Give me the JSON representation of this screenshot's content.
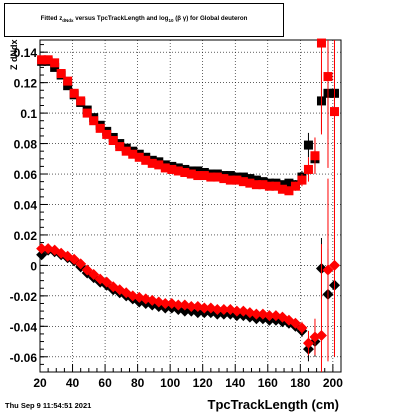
{
  "title": {
    "prefix": "Fitted",
    "z": "z",
    "z_sub": "dNdx",
    "middle": "versus TpcTrackLength and log",
    "log_sub": "10",
    "suffix": "(β γ) for Global deuteron"
  },
  "timestamp": "Thu Sep  9 11:54:51 2021",
  "chart_data": {
    "type": "scatter",
    "xlabel": "TpcTrackLength (cm)",
    "ylabel": "Z dNdx",
    "xlim": [
      20,
      205
    ],
    "ylim": [
      -0.07,
      0.148
    ],
    "xticks": [
      20,
      40,
      60,
      80,
      100,
      120,
      140,
      160,
      180,
      200
    ],
    "yticks": [
      -0.06,
      -0.04,
      -0.02,
      0,
      0.02,
      0.04,
      0.06,
      0.08,
      0.1,
      0.12,
      0.14
    ],
    "ytick_labels": [
      "-0.06",
      "-0.04",
      "-0.02",
      "0",
      "0.02",
      "0.04",
      "0.06",
      "0.08",
      "0.1",
      "0.12",
      "0.14"
    ],
    "grid": true,
    "series": [
      {
        "marker": "square",
        "color": "#000000",
        "x": [
          21,
          25,
          29,
          33,
          37,
          41,
          45,
          49,
          53,
          57,
          61,
          65,
          69,
          73,
          77,
          81,
          85,
          89,
          93,
          97,
          101,
          105,
          109,
          113,
          117,
          121,
          125,
          129,
          133,
          137,
          141,
          145,
          149,
          153,
          157,
          161,
          165,
          169,
          173,
          177,
          181,
          185,
          189,
          193,
          197,
          201
        ],
        "y": [
          0.134,
          0.134,
          0.13,
          0.125,
          0.118,
          0.112,
          0.107,
          0.102,
          0.097,
          0.092,
          0.088,
          0.084,
          0.08,
          0.077,
          0.075,
          0.073,
          0.071,
          0.069,
          0.068,
          0.066,
          0.065,
          0.064,
          0.063,
          0.062,
          0.062,
          0.061,
          0.06,
          0.06,
          0.059,
          0.059,
          0.058,
          0.058,
          0.057,
          0.056,
          0.055,
          0.054,
          0.054,
          0.053,
          0.054,
          0.053,
          0.058,
          0.079,
          0.07,
          0.108,
          0.113,
          0.113
        ],
        "yerr": [
          0.001,
          0.001,
          0.001,
          0.001,
          0.001,
          0.001,
          0.001,
          0.001,
          0.001,
          0.001,
          0.001,
          0.001,
          0.001,
          0.001,
          0.001,
          0.001,
          0.001,
          0.001,
          0.001,
          0.001,
          0.001,
          0.001,
          0.001,
          0.001,
          0.001,
          0.001,
          0.001,
          0.001,
          0.001,
          0.001,
          0.001,
          0.001,
          0.001,
          0.001,
          0.001,
          0.001,
          0.001,
          0.002,
          0.002,
          0.003,
          0.004,
          0.008,
          0.01,
          0.02,
          0.03,
          0.03
        ]
      },
      {
        "marker": "square",
        "color": "#ff0000",
        "x": [
          21,
          25,
          29,
          33,
          37,
          41,
          45,
          49,
          53,
          57,
          61,
          65,
          69,
          73,
          77,
          81,
          85,
          89,
          93,
          97,
          101,
          105,
          109,
          113,
          117,
          121,
          125,
          129,
          133,
          137,
          141,
          145,
          149,
          153,
          157,
          161,
          165,
          169,
          173,
          177,
          181,
          185,
          189,
          193,
          197,
          201
        ],
        "y": [
          0.135,
          0.135,
          0.133,
          0.126,
          0.121,
          0.113,
          0.108,
          0.1,
          0.095,
          0.09,
          0.086,
          0.082,
          0.078,
          0.075,
          0.073,
          0.071,
          0.069,
          0.067,
          0.066,
          0.064,
          0.063,
          0.062,
          0.061,
          0.06,
          0.059,
          0.059,
          0.058,
          0.058,
          0.057,
          0.056,
          0.056,
          0.055,
          0.054,
          0.053,
          0.053,
          0.052,
          0.052,
          0.05,
          0.049,
          0.052,
          0.056,
          0.063,
          0.072,
          0.146,
          0.124,
          0.101
        ],
        "yerr": [
          0.001,
          0.001,
          0.001,
          0.001,
          0.001,
          0.001,
          0.001,
          0.001,
          0.001,
          0.001,
          0.001,
          0.001,
          0.001,
          0.001,
          0.001,
          0.001,
          0.001,
          0.001,
          0.001,
          0.001,
          0.001,
          0.001,
          0.001,
          0.001,
          0.001,
          0.001,
          0.001,
          0.001,
          0.001,
          0.001,
          0.001,
          0.001,
          0.001,
          0.001,
          0.001,
          0.001,
          0.001,
          0.002,
          0.002,
          0.003,
          0.004,
          0.008,
          0.012,
          0.06,
          0.06,
          0.06
        ]
      },
      {
        "marker": "diamond",
        "color": "#000000",
        "x": [
          21,
          25,
          29,
          33,
          37,
          41,
          45,
          49,
          53,
          57,
          61,
          65,
          69,
          73,
          77,
          81,
          85,
          89,
          93,
          97,
          101,
          105,
          109,
          113,
          117,
          121,
          125,
          129,
          133,
          137,
          141,
          145,
          149,
          153,
          157,
          161,
          165,
          169,
          173,
          177,
          181,
          185,
          189,
          193,
          197,
          201
        ],
        "y": [
          0.007,
          0.01,
          0.009,
          0.007,
          0.005,
          0.003,
          -0.001,
          -0.005,
          -0.008,
          -0.011,
          -0.013,
          -0.016,
          -0.018,
          -0.02,
          -0.022,
          -0.024,
          -0.025,
          -0.026,
          -0.027,
          -0.028,
          -0.028,
          -0.029,
          -0.03,
          -0.03,
          -0.031,
          -0.031,
          -0.031,
          -0.032,
          -0.032,
          -0.032,
          -0.033,
          -0.033,
          -0.034,
          -0.035,
          -0.035,
          -0.036,
          -0.036,
          -0.037,
          -0.038,
          -0.04,
          -0.043,
          -0.055,
          -0.05,
          -0.002,
          -0.019,
          -0.013
        ],
        "yerr": [
          0.001,
          0.001,
          0.001,
          0.001,
          0.001,
          0.001,
          0.001,
          0.001,
          0.001,
          0.001,
          0.001,
          0.001,
          0.001,
          0.001,
          0.001,
          0.001,
          0.001,
          0.001,
          0.001,
          0.001,
          0.001,
          0.001,
          0.001,
          0.001,
          0.001,
          0.001,
          0.001,
          0.001,
          0.001,
          0.001,
          0.001,
          0.001,
          0.001,
          0.001,
          0.001,
          0.001,
          0.001,
          0.002,
          0.002,
          0.003,
          0.004,
          0.008,
          0.01,
          0.02,
          0.03,
          0.03
        ]
      },
      {
        "marker": "diamond",
        "color": "#ff0000",
        "x": [
          21,
          25,
          29,
          33,
          37,
          41,
          45,
          49,
          53,
          57,
          61,
          65,
          69,
          73,
          77,
          81,
          85,
          89,
          93,
          97,
          101,
          105,
          109,
          113,
          117,
          121,
          125,
          129,
          133,
          137,
          141,
          145,
          149,
          153,
          157,
          161,
          165,
          169,
          173,
          177,
          181,
          185,
          189,
          193,
          197,
          201
        ],
        "y": [
          0.011,
          0.011,
          0.01,
          0.008,
          0.006,
          0.004,
          0.001,
          -0.003,
          -0.006,
          -0.009,
          -0.011,
          -0.014,
          -0.016,
          -0.018,
          -0.02,
          -0.021,
          -0.022,
          -0.023,
          -0.024,
          -0.025,
          -0.025,
          -0.026,
          -0.026,
          -0.027,
          -0.027,
          -0.028,
          -0.028,
          -0.029,
          -0.029,
          -0.029,
          -0.03,
          -0.03,
          -0.031,
          -0.032,
          -0.032,
          -0.033,
          -0.033,
          -0.034,
          -0.036,
          -0.038,
          -0.041,
          -0.051,
          -0.047,
          -0.046,
          -0.003,
          0.0
        ],
        "yerr": [
          0.001,
          0.001,
          0.001,
          0.001,
          0.001,
          0.001,
          0.001,
          0.001,
          0.001,
          0.001,
          0.001,
          0.001,
          0.001,
          0.001,
          0.001,
          0.001,
          0.001,
          0.001,
          0.001,
          0.001,
          0.001,
          0.001,
          0.001,
          0.001,
          0.001,
          0.001,
          0.001,
          0.001,
          0.001,
          0.001,
          0.001,
          0.001,
          0.001,
          0.001,
          0.001,
          0.001,
          0.001,
          0.002,
          0.002,
          0.003,
          0.004,
          0.008,
          0.012,
          0.06,
          0.06,
          0.06
        ]
      }
    ]
  }
}
